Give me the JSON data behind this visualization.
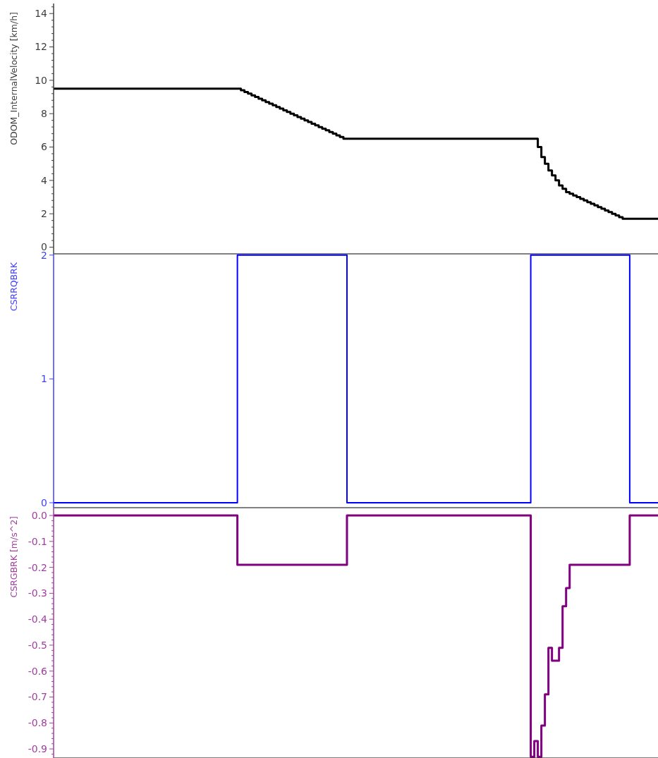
{
  "chart_data": [
    {
      "type": "step",
      "ylabel": "ODOM_InternalVelocity [km/h]",
      "tick_labels": "y",
      "grid": false,
      "ylim": [
        -0.4,
        14.6
      ],
      "yticks": [
        0,
        {
          "value": 0.4,
          "label": null
        },
        {
          "value": 0.8,
          "label": null
        },
        {
          "value": 1.2,
          "label": null
        },
        {
          "value": 1.6,
          "label": null
        },
        2,
        {
          "value": 2.4,
          "label": null
        },
        {
          "value": 2.8,
          "label": null
        },
        {
          "value": 3.2,
          "label": null
        },
        {
          "value": 3.6,
          "label": null
        },
        4,
        {
          "value": 4.4,
          "label": null
        },
        {
          "value": 4.8,
          "label": null
        },
        {
          "value": 5.2,
          "label": null
        },
        {
          "value": 5.6,
          "label": null
        },
        6,
        {
          "value": 6.4,
          "label": null
        },
        {
          "value": 6.8,
          "label": null
        },
        {
          "value": 7.2,
          "label": null
        },
        {
          "value": 7.6,
          "label": null
        },
        8,
        {
          "value": 8.4,
          "label": null
        },
        {
          "value": 8.8,
          "label": null
        },
        {
          "value": 9.2,
          "label": null
        },
        {
          "value": 9.6,
          "label": null
        },
        10,
        {
          "value": 10.4,
          "label": null
        },
        {
          "value": 10.8,
          "label": null
        },
        {
          "value": 11.2,
          "label": null
        },
        {
          "value": 11.6,
          "label": null
        },
        12,
        {
          "value": 12.4,
          "label": null
        },
        {
          "value": 12.8,
          "label": null
        },
        {
          "value": 13.2,
          "label": null
        },
        {
          "value": 13.6,
          "label": null
        },
        14,
        {
          "value": 14.4,
          "label": null
        }
      ],
      "categories": [
        null,
        null,
        null,
        null,
        null,
        null,
        null,
        null,
        null,
        null,
        null,
        null,
        null,
        null,
        null,
        null,
        null,
        null,
        null,
        null,
        null,
        null,
        null,
        null,
        null,
        null,
        null,
        null,
        null,
        null,
        null,
        null,
        null,
        null,
        null,
        null,
        null,
        null,
        null,
        null,
        null,
        null,
        null,
        null,
        null,
        null,
        null,
        null,
        null,
        null,
        null,
        null,
        null,
        null,
        null,
        null,
        null,
        null,
        null,
        null,
        null,
        null,
        null,
        null,
        null,
        null,
        null,
        null,
        null,
        null,
        null,
        null,
        null,
        null,
        null,
        null,
        null,
        null,
        null,
        null,
        null,
        null,
        null,
        null,
        null,
        null,
        null,
        null,
        null,
        null,
        null,
        null,
        null,
        null,
        null,
        null,
        null,
        null,
        null,
        null,
        null,
        null,
        null,
        null,
        null,
        null,
        null,
        null,
        null,
        null,
        null,
        null,
        null,
        null,
        null,
        null,
        null,
        null,
        null,
        null,
        null,
        null,
        null,
        null,
        null,
        null,
        null,
        null,
        null,
        null,
        null,
        null,
        null,
        null,
        null,
        null,
        null,
        null,
        null,
        null,
        null,
        null,
        null,
        null,
        null,
        null,
        null,
        null,
        null,
        null,
        null,
        null,
        null,
        null,
        null,
        null,
        null,
        null,
        null,
        null,
        null,
        null,
        null,
        null,
        null,
        null,
        null,
        null,
        null,
        null,
        null,
        null
      ],
      "series": [
        {
          "color": "#000000",
          "values": [
            9.5,
            9.5,
            9.5,
            9.5,
            9.5,
            9.5,
            9.5,
            9.5,
            9.5,
            9.5,
            9.5,
            9.5,
            9.5,
            9.5,
            9.5,
            9.5,
            9.5,
            9.5,
            9.5,
            9.5,
            9.5,
            9.5,
            9.5,
            9.5,
            9.5,
            9.5,
            9.5,
            9.5,
            9.5,
            9.5,
            9.5,
            9.5,
            9.5,
            9.5,
            9.5,
            9.5,
            9.5,
            9.5,
            9.5,
            9.5,
            9.5,
            9.5,
            9.5,
            9.5,
            9.5,
            9.5,
            9.5,
            9.5,
            9.5,
            9.5,
            9.5,
            9.5,
            9.5,
            9.4,
            9.3,
            9.2,
            9.1,
            9.0,
            8.9,
            8.8,
            8.7,
            8.6,
            8.5,
            8.4,
            8.3,
            8.2,
            8.1,
            8.0,
            7.9,
            7.8,
            7.7,
            7.6,
            7.5,
            7.4,
            7.3,
            7.2,
            7.1,
            7.0,
            6.9,
            6.8,
            6.7,
            6.6,
            6.5,
            6.5,
            6.5,
            6.5,
            6.5,
            6.5,
            6.5,
            6.5,
            6.5,
            6.5,
            6.5,
            6.5,
            6.5,
            6.5,
            6.5,
            6.5,
            6.5,
            6.5,
            6.5,
            6.5,
            6.5,
            6.5,
            6.5,
            6.5,
            6.5,
            6.5,
            6.5,
            6.5,
            6.5,
            6.5,
            6.5,
            6.5,
            6.5,
            6.5,
            6.5,
            6.5,
            6.5,
            6.5,
            6.5,
            6.5,
            6.5,
            6.5,
            6.5,
            6.5,
            6.5,
            6.5,
            6.5,
            6.5,
            6.5,
            6.5,
            6.5,
            6.5,
            6.5,
            6.5,
            6.5,
            6.0,
            5.4,
            5.0,
            4.6,
            4.3,
            4.0,
            3.7,
            3.5,
            3.3,
            3.2,
            3.1,
            3.0,
            2.9,
            2.8,
            2.7,
            2.6,
            2.5,
            2.4,
            2.3,
            2.2,
            2.1,
            2.0,
            1.9,
            1.8,
            1.7,
            1.7,
            1.7,
            1.7,
            1.7,
            1.7,
            1.7,
            1.7,
            1.7,
            1.7,
            1.7
          ]
        }
      ]
    },
    {
      "type": "step",
      "ylabel": "CSRRQBRK",
      "tick_labels": "y",
      "grid": false,
      "ylim": [
        -0.04,
        2.01
      ],
      "yticks": [
        0,
        1,
        2
      ],
      "categories": [
        null,
        null,
        null,
        null,
        null,
        null,
        null,
        null,
        null,
        null,
        null,
        null,
        null,
        null,
        null,
        null,
        null,
        null,
        null,
        null,
        null,
        null,
        null,
        null,
        null,
        null,
        null,
        null,
        null,
        null,
        null,
        null,
        null,
        null,
        null,
        null,
        null,
        null,
        null,
        null,
        null,
        null,
        null,
        null,
        null,
        null,
        null,
        null,
        null,
        null,
        null,
        null,
        null,
        null,
        null,
        null,
        null,
        null,
        null,
        null,
        null,
        null,
        null,
        null,
        null,
        null,
        null,
        null,
        null,
        null,
        null,
        null,
        null,
        null,
        null,
        null,
        null,
        null,
        null,
        null,
        null,
        null,
        null,
        null,
        null,
        null,
        null,
        null,
        null,
        null,
        null,
        null,
        null,
        null,
        null,
        null,
        null,
        null,
        null,
        null,
        null,
        null,
        null,
        null,
        null,
        null,
        null,
        null,
        null,
        null,
        null,
        null,
        null,
        null,
        null,
        null,
        null,
        null,
        null,
        null,
        null,
        null,
        null,
        null,
        null,
        null,
        null,
        null,
        null,
        null,
        null,
        null,
        null,
        null,
        null,
        null,
        null,
        null,
        null,
        null,
        null,
        null,
        null,
        null,
        null,
        null,
        null,
        null,
        null,
        null,
        null,
        null,
        null,
        null,
        null,
        null,
        null,
        null,
        null,
        null,
        null,
        null,
        null,
        null,
        null,
        null,
        null,
        null,
        null,
        null,
        null,
        null
      ],
      "series": [
        {
          "color": "#0000ff",
          "values": [
            0,
            0,
            0,
            0,
            0,
            0,
            0,
            0,
            0,
            0,
            0,
            0,
            0,
            0,
            0,
            0,
            0,
            0,
            0,
            0,
            0,
            0,
            0,
            0,
            0,
            0,
            0,
            0,
            0,
            0,
            0,
            0,
            0,
            0,
            0,
            0,
            0,
            0,
            0,
            0,
            0,
            0,
            0,
            0,
            0,
            0,
            0,
            0,
            0,
            0,
            0,
            0,
            2,
            2,
            2,
            2,
            2,
            2,
            2,
            2,
            2,
            2,
            2,
            2,
            2,
            2,
            2,
            2,
            2,
            2,
            2,
            2,
            2,
            2,
            2,
            2,
            2,
            2,
            2,
            2,
            2,
            2,
            2,
            0,
            0,
            0,
            0,
            0,
            0,
            0,
            0,
            0,
            0,
            0,
            0,
            0,
            0,
            0,
            0,
            0,
            0,
            0,
            0,
            0,
            0,
            0,
            0,
            0,
            0,
            0,
            0,
            0,
            0,
            0,
            0,
            0,
            0,
            0,
            0,
            0,
            0,
            0,
            0,
            0,
            0,
            0,
            0,
            0,
            0,
            0,
            0,
            0,
            0,
            0,
            0,
            2,
            2,
            2,
            2,
            2,
            2,
            2,
            2,
            2,
            2,
            2,
            2,
            2,
            2,
            2,
            2,
            2,
            2,
            2,
            2,
            2,
            2,
            2,
            2,
            2,
            2,
            2,
            2,
            0,
            0,
            0,
            0,
            0,
            0,
            0,
            0,
            0
          ]
        }
      ]
    },
    {
      "type": "step",
      "ylabel": "CSRGBRK [m/s^2]",
      "tick_labels": "y",
      "grid": false,
      "ylim": [
        -0.935,
        0.03
      ],
      "yticks": [
        {
          "value": 0,
          "label": "0.0"
        },
        {
          "value": -0.02,
          "label": null
        },
        {
          "value": -0.04,
          "label": null
        },
        {
          "value": -0.06,
          "label": null
        },
        {
          "value": -0.08,
          "label": null
        },
        -0.1,
        {
          "value": -0.12,
          "label": null
        },
        {
          "value": -0.14,
          "label": null
        },
        {
          "value": -0.16,
          "label": null
        },
        {
          "value": -0.18,
          "label": null
        },
        -0.2,
        {
          "value": -0.22,
          "label": null
        },
        {
          "value": -0.24,
          "label": null
        },
        {
          "value": -0.26,
          "label": null
        },
        {
          "value": -0.28,
          "label": null
        },
        -0.3,
        {
          "value": -0.32,
          "label": null
        },
        {
          "value": -0.34,
          "label": null
        },
        {
          "value": -0.36,
          "label": null
        },
        {
          "value": -0.38,
          "label": null
        },
        -0.4,
        {
          "value": -0.42,
          "label": null
        },
        {
          "value": -0.44,
          "label": null
        },
        {
          "value": -0.46,
          "label": null
        },
        {
          "value": -0.48,
          "label": null
        },
        -0.5,
        {
          "value": -0.52,
          "label": null
        },
        {
          "value": -0.54,
          "label": null
        },
        {
          "value": -0.56,
          "label": null
        },
        {
          "value": -0.58,
          "label": null
        },
        -0.6,
        {
          "value": -0.62,
          "label": null
        },
        {
          "value": -0.64,
          "label": null
        },
        {
          "value": -0.66,
          "label": null
        },
        {
          "value": -0.68,
          "label": null
        },
        -0.7,
        {
          "value": -0.72,
          "label": null
        },
        {
          "value": -0.74,
          "label": null
        },
        {
          "value": -0.76,
          "label": null
        },
        {
          "value": -0.78,
          "label": null
        },
        -0.8,
        {
          "value": -0.82,
          "label": null
        },
        {
          "value": -0.84,
          "label": null
        },
        {
          "value": -0.86,
          "label": null
        },
        {
          "value": -0.88,
          "label": null
        },
        -0.9,
        {
          "value": -0.92,
          "label": null
        }
      ],
      "categories": [
        null,
        null,
        null,
        null,
        null,
        null,
        null,
        null,
        null,
        null,
        null,
        null,
        null,
        null,
        null,
        null,
        null,
        null,
        null,
        null,
        null,
        null,
        null,
        null,
        null,
        null,
        null,
        null,
        null,
        null,
        null,
        null,
        null,
        null,
        null,
        null,
        null,
        null,
        null,
        null,
        null,
        null,
        null,
        null,
        null,
        null,
        null,
        null,
        null,
        null,
        null,
        null,
        null,
        null,
        null,
        null,
        null,
        null,
        null,
        null,
        null,
        null,
        null,
        null,
        null,
        null,
        null,
        null,
        null,
        null,
        null,
        null,
        null,
        null,
        null,
        null,
        null,
        null,
        null,
        null,
        null,
        null,
        null,
        null,
        null,
        null,
        null,
        null,
        null,
        null,
        null,
        null,
        null,
        null,
        null,
        null,
        null,
        null,
        null,
        null,
        null,
        null,
        null,
        null,
        null,
        null,
        null,
        null,
        null,
        null,
        null,
        null,
        null,
        null,
        null,
        null,
        null,
        null,
        null,
        null,
        null,
        null,
        null,
        null,
        null,
        null,
        null,
        null,
        null,
        null,
        null,
        null,
        null,
        null,
        null,
        null,
        null,
        null,
        null,
        null,
        null,
        null,
        null,
        null,
        null,
        null,
        null,
        null,
        null,
        null,
        null,
        null,
        null,
        null,
        null,
        null,
        null,
        null,
        null,
        null,
        null,
        null,
        null,
        null,
        null,
        null,
        null,
        null,
        null,
        null,
        null,
        null
      ],
      "series": [
        {
          "color": "#800080",
          "values": [
            0,
            0,
            0,
            0,
            0,
            0,
            0,
            0,
            0,
            0,
            0,
            0,
            0,
            0,
            0,
            0,
            0,
            0,
            0,
            0,
            0,
            0,
            0,
            0,
            0,
            0,
            0,
            0,
            0,
            0,
            0,
            0,
            0,
            0,
            0,
            0,
            0,
            0,
            0,
            0,
            0,
            0,
            0,
            0,
            0,
            0,
            0,
            0,
            0,
            0,
            0,
            0,
            -0.19,
            -0.19,
            -0.19,
            -0.19,
            -0.19,
            -0.19,
            -0.19,
            -0.19,
            -0.19,
            -0.19,
            -0.19,
            -0.19,
            -0.19,
            -0.19,
            -0.19,
            -0.19,
            -0.19,
            -0.19,
            -0.19,
            -0.19,
            -0.19,
            -0.19,
            -0.19,
            -0.19,
            -0.19,
            -0.19,
            -0.19,
            -0.19,
            -0.19,
            -0.19,
            -0.19,
            0,
            0,
            0,
            0,
            0,
            0,
            0,
            0,
            0,
            0,
            0,
            0,
            0,
            0,
            0,
            0,
            0,
            0,
            0,
            0,
            0,
            0,
            0,
            0,
            0,
            0,
            0,
            0,
            0,
            0,
            0,
            0,
            0,
            0,
            0,
            0,
            0,
            0,
            0,
            0,
            0,
            0,
            0,
            0,
            0,
            0,
            0,
            0,
            0,
            0,
            0,
            0,
            -0.93,
            -0.87,
            -0.93,
            -0.81,
            -0.69,
            -0.51,
            -0.56,
            -0.56,
            -0.51,
            -0.35,
            -0.28,
            -0.19,
            -0.19,
            -0.19,
            -0.19,
            -0.19,
            -0.19,
            -0.19,
            -0.19,
            -0.19,
            -0.19,
            -0.19,
            -0.19,
            -0.19,
            -0.19,
            -0.19,
            -0.19,
            -0.19,
            0,
            0,
            0,
            0,
            0,
            0,
            0,
            0,
            0
          ]
        }
      ]
    }
  ]
}
